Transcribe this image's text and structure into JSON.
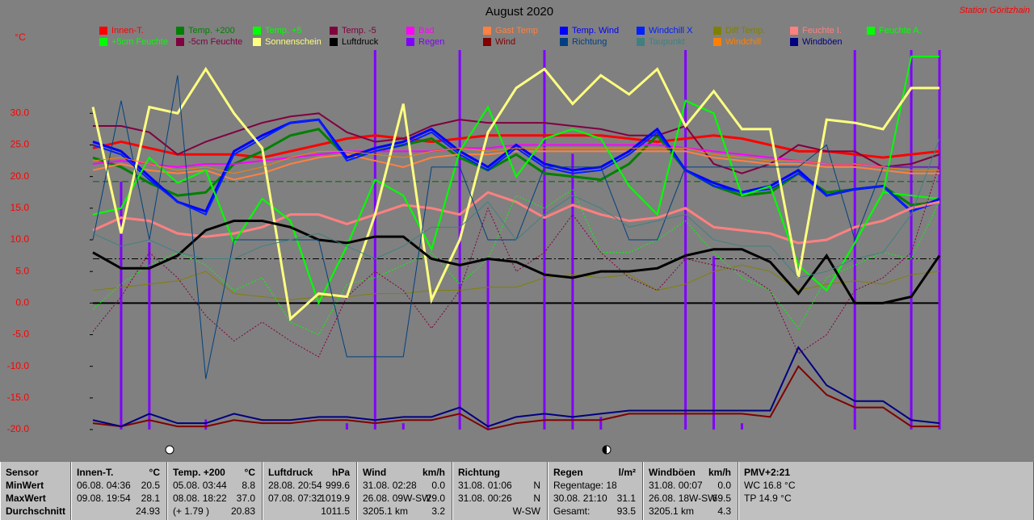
{
  "chart_data": {
    "type": "line",
    "title": "August 2020",
    "station": "Station Göritzhain",
    "y_unit": "°C",
    "ylim": [
      -20,
      40
    ],
    "y2lim": [
      0,
      30
    ],
    "yticks": [
      {
        "value": -20,
        "label": "-20.0"
      },
      {
        "value": -15,
        "label": "-15.0"
      },
      {
        "value": -10,
        "label": "-10.0"
      },
      {
        "value": -5,
        "label": "-5.0"
      },
      {
        "value": 0,
        "label": "0.0"
      },
      {
        "value": 5,
        "label": "5.0"
      },
      {
        "value": 10,
        "label": "10.0"
      },
      {
        "value": 15,
        "label": "15.0"
      },
      {
        "value": 20,
        "label": "20.0"
      },
      {
        "value": 25,
        "label": "25.0"
      },
      {
        "value": 30,
        "label": "30.0"
      }
    ],
    "reference_lines": [
      {
        "value": 19.2,
        "color": "#006400"
      },
      {
        "value": 7,
        "color": "#000000"
      }
    ],
    "series": [
      {
        "name": "Innen-T.",
        "color": "#ff0000",
        "style": "thick",
        "values": [
          24.5,
          25.5,
          24.5,
          23.5,
          23.5,
          23.5,
          23,
          24,
          25,
          26,
          26.5,
          26,
          25.5,
          26,
          26.5,
          26.5,
          26.5,
          26.5,
          26.5,
          26,
          25.5,
          26,
          26.5,
          26,
          25,
          24,
          24,
          23.5,
          23,
          23.5,
          24
        ]
      },
      {
        "name": "Temp. +200",
        "color": "#008000",
        "style": "thick",
        "values": [
          23,
          21.5,
          19,
          17,
          17.5,
          22,
          24,
          26.5,
          27.5,
          23,
          24,
          25,
          26,
          23,
          21,
          23.5,
          20.5,
          20,
          19.5,
          22,
          26.5,
          21,
          18.5,
          17,
          17.5,
          20.5,
          17.5,
          18,
          18.5,
          15.5,
          16
        ]
      },
      {
        "name": "Temp. +5",
        "color": "#00ff00",
        "style": "medium",
        "values": [
          14,
          15,
          23,
          19,
          21,
          9.5,
          16.5,
          13,
          0,
          9,
          19.5,
          17,
          8.5,
          24,
          31,
          20,
          26,
          27.5,
          26,
          18.5,
          14,
          32,
          30,
          17,
          18.5,
          6,
          2,
          9.5,
          17.5,
          17,
          16.5
        ]
      },
      {
        "name": "Temp. -5",
        "color": "#800040",
        "style": "medium",
        "values": [
          28,
          28,
          27,
          23.5,
          25.5,
          27,
          28.5,
          29.5,
          30,
          27,
          25.5,
          26,
          28,
          29,
          28.5,
          28.5,
          28.5,
          28,
          27.5,
          26.5,
          26.5,
          28,
          22,
          20.5,
          22,
          25,
          24,
          24,
          21.5,
          22,
          23.5
        ]
      },
      {
        "name": "Bad",
        "color": "#ff00ff",
        "style": "medium",
        "values": [
          22,
          22.5,
          22,
          21.5,
          22,
          22,
          22.5,
          23,
          23.5,
          24,
          24,
          24,
          24,
          24.5,
          24.5,
          25,
          25,
          25,
          25,
          25,
          25,
          24.5,
          24,
          23.5,
          23,
          22.5,
          22,
          22,
          21.5,
          21.5,
          21.5
        ]
      },
      {
        "name": "Gast Temp",
        "color": "#ff8040",
        "style": "medium",
        "values": [
          21,
          22,
          21,
          20.5,
          21,
          19.5,
          20.5,
          22,
          23,
          23.5,
          22.5,
          21.5,
          23,
          23.5,
          23.5,
          24,
          24,
          24,
          24,
          24,
          24,
          24,
          23,
          22.5,
          22,
          22,
          21.5,
          21.5,
          21,
          20.5,
          20.5
        ]
      },
      {
        "name": "Temp. Wind",
        "color": "#0000ff",
        "style": "thick",
        "values": [
          25.5,
          24,
          20,
          16,
          14.5,
          24,
          26.5,
          28.5,
          29,
          23,
          24.5,
          25.5,
          27.5,
          24,
          21.5,
          25,
          22,
          21,
          21.5,
          24,
          27.5,
          21,
          19,
          17.5,
          18.5,
          21,
          17,
          18,
          18.5,
          14.5,
          16.5
        ]
      },
      {
        "name": "Windchill X",
        "color": "#0020ff",
        "style": "medium",
        "values": [
          25,
          23.5,
          19.5,
          16,
          14,
          23.5,
          26,
          28.5,
          29,
          22.5,
          24,
          25,
          27,
          23.5,
          21,
          24.5,
          21.5,
          20.5,
          21,
          23.5,
          27,
          21,
          18.5,
          17.5,
          18,
          20.5,
          17,
          18,
          18.5,
          14.5,
          16
        ]
      },
      {
        "name": "Diff Temp.",
        "color": "#808000",
        "style": "thin",
        "values": [
          2,
          2.5,
          3,
          3.5,
          5,
          1.5,
          1,
          0.5,
          1,
          1,
          1.5,
          1.5,
          2,
          2,
          2.5,
          2.5,
          4,
          4.5,
          4,
          4.5,
          2,
          3,
          5,
          6,
          5,
          2,
          3,
          3.5,
          3,
          4.5,
          5
        ]
      },
      {
        "name": "Feuchte I.",
        "color": "#ff8080",
        "style": "thick",
        "values": [
          11.5,
          13.5,
          13,
          11,
          10.5,
          11,
          12,
          14,
          14,
          12.5,
          14,
          15.5,
          15,
          14,
          17.5,
          16,
          13.5,
          15.5,
          14,
          13,
          13.5,
          15,
          12,
          11.5,
          11,
          9.5,
          10,
          12,
          13,
          15,
          16
        ]
      },
      {
        "name": "Feuchte A.",
        "color": "#00ff00",
        "style": "medium",
        "values": [
          14,
          15,
          23,
          19,
          21,
          9.5,
          16.5,
          13,
          0,
          9,
          19.5,
          17,
          8.5,
          24,
          31,
          20,
          26,
          27.5,
          26,
          18.5,
          14,
          32,
          30,
          17,
          18.5,
          6,
          2,
          9.5,
          17.5,
          39,
          39
        ]
      },
      {
        "name": "+5cm Feuchte",
        "color": "#00ff00",
        "style": "dotted",
        "values": [
          -1,
          3,
          6,
          8,
          6,
          2,
          4,
          -3,
          -5,
          3,
          4,
          6,
          8,
          3,
          7,
          17,
          15,
          18,
          8,
          8,
          10,
          13,
          8,
          4,
          2,
          -4,
          4,
          6,
          8,
          7,
          16
        ]
      },
      {
        "name": "-5cm Feuchte",
        "color": "#800040",
        "style": "dotted",
        "values": [
          -4.5,
          1,
          8,
          4,
          -2,
          -6,
          -3,
          -6,
          -8.5,
          1,
          5,
          2,
          -4,
          2,
          15,
          5,
          8,
          14,
          8,
          4,
          2,
          7,
          6,
          5,
          2,
          -8,
          -5,
          2,
          4,
          8,
          22
        ]
      },
      {
        "name": "Sonnenschein",
        "color": "#ffff80",
        "style": "thick",
        "values": [
          31,
          11,
          31,
          30,
          37,
          30,
          24.5,
          -2.5,
          1.5,
          1,
          14,
          31.5,
          0.5,
          10,
          27,
          34,
          37,
          31.5,
          36,
          33,
          37,
          28,
          33.5,
          27.5,
          27.5,
          4,
          29,
          28.5,
          27.5,
          34,
          34
        ]
      },
      {
        "name": "Luftdruck",
        "color": "#000000",
        "style": "thick",
        "values": [
          8,
          5.5,
          5.5,
          7.5,
          11.5,
          13,
          13,
          12,
          10,
          9.5,
          10.5,
          10.5,
          7,
          6,
          7,
          6.5,
          4.5,
          4,
          5,
          5,
          5.5,
          7.5,
          8.5,
          8.5,
          6.5,
          1.5,
          7.5,
          0,
          0,
          1,
          7.5
        ]
      },
      {
        "name": "Regen",
        "color": "#8000ff",
        "style": "bars",
        "axis": "y2",
        "values": [
          0,
          19.6,
          14.8,
          0,
          0.8,
          0,
          0,
          0,
          0,
          0.5,
          30,
          0.5,
          0,
          30,
          13.5,
          0,
          30,
          21.8,
          1,
          0,
          0,
          30,
          13.7,
          0.5,
          0,
          0,
          0,
          30,
          0,
          30,
          30
        ]
      },
      {
        "name": "Wind",
        "color": "#800000",
        "style": "medium",
        "values": [
          -19,
          -19.5,
          -18.5,
          -19.5,
          -19.5,
          -18.5,
          -19,
          -19,
          -18.5,
          -18.5,
          -19,
          -18.5,
          -18.5,
          -17.5,
          -20,
          -19,
          -18.5,
          -18.5,
          -18.5,
          -17.5,
          -17.5,
          -17.5,
          -17.5,
          -17.5,
          -18,
          -10,
          -14.5,
          -16.5,
          -16.5,
          -19.5,
          -19.5
        ]
      },
      {
        "name": "Richtung",
        "color": "#004080",
        "style": "thin",
        "values": [
          10,
          32,
          10,
          36,
          -12,
          10,
          10,
          10,
          10,
          -8.5,
          -8.5,
          -8.5,
          21.5,
          21.5,
          10,
          10,
          21.5,
          21.5,
          21.5,
          10,
          10,
          21.5,
          21.5,
          21.5,
          21.5,
          21.5,
          25,
          10,
          21.5,
          21.5,
          21.5
        ]
      },
      {
        "name": "Taupunkt",
        "color": "#408080",
        "style": "thin",
        "values": [
          11,
          9,
          10,
          8,
          7,
          7,
          9,
          10,
          11,
          9,
          7,
          9,
          12,
          12,
          16,
          10,
          14,
          17,
          15,
          12,
          13,
          14,
          10,
          9,
          9,
          4,
          5,
          7,
          8,
          14,
          26
        ]
      },
      {
        "name": "Windchill",
        "color": "#ff8000",
        "style": "thin",
        "values": [
          22.5,
          23,
          22,
          21,
          21.5,
          20.5,
          21.5,
          23,
          24,
          24,
          23.5,
          23,
          24,
          24.5,
          24,
          24.5,
          24.5,
          24.5,
          24.5,
          24.5,
          24.5,
          24.5,
          23.5,
          23,
          22.5,
          22.5,
          22,
          22,
          21.5,
          21,
          21
        ]
      },
      {
        "name": "Windböen",
        "color": "#000080",
        "style": "medium",
        "values": [
          -18.5,
          -19.5,
          -17.5,
          -19,
          -19,
          -17.5,
          -18.5,
          -18.5,
          -18,
          -18,
          -18.5,
          -18,
          -18,
          -16.5,
          -19.5,
          -18,
          -17.5,
          -18,
          -17.5,
          -17,
          -17,
          -17,
          -17,
          -17,
          -17,
          -7,
          -13,
          -15.5,
          -15.5,
          -18.5,
          -19
        ]
      }
    ]
  },
  "table": {
    "columns": [
      {
        "header": "Sensor",
        "rows": [
          {
            "left": "MinWert"
          },
          {
            "left": "MaxWert"
          },
          {
            "left": "Durchschnitt"
          }
        ]
      },
      {
        "header": "Innen-T.",
        "unit": "°C",
        "rows": [
          {
            "left": "06.08.  04:36",
            "right": "20.5"
          },
          {
            "left": "09.08.  19:54",
            "right": "28.1"
          },
          {
            "right": "24.93"
          }
        ]
      },
      {
        "header": "Temp. +200",
        "unit": "°C",
        "rows": [
          {
            "left": "05.08.  03:44",
            "right": "8.8"
          },
          {
            "left": "08.08.  18:22",
            "right": "37.0"
          },
          {
            "left": "(+ 1.79 )",
            "right": "20.83"
          }
        ]
      },
      {
        "header": "Luftdruck",
        "unit": "hPa",
        "rows": [
          {
            "left": "28.08.  20:54",
            "right": "999.6"
          },
          {
            "left": "07.08.  07:32",
            "right": "1019.9"
          },
          {
            "right": "1011.5"
          }
        ]
      },
      {
        "header": "Wind",
        "unit": "km/h",
        "rows": [
          {
            "left": "31.08.  02:28",
            "right": "0.0"
          },
          {
            "left": "26.08.  09W-SW",
            "right": "29.0"
          },
          {
            "left": "3205.1 km",
            "right": "3.2"
          }
        ]
      },
      {
        "header": "Richtung",
        "rows": [
          {
            "left": "31.08.  01:06",
            "right": "N"
          },
          {
            "left": "31.08.  00:26",
            "right": "N"
          },
          {
            "right": "W-SW"
          }
        ]
      },
      {
        "header": "Regen",
        "unit": "l/m²",
        "rows": [
          {
            "left": "Regentage: 18"
          },
          {
            "left": "30.08.  21:10",
            "right": "31.1"
          },
          {
            "left": "Gesamt:",
            "right": "93.5"
          }
        ]
      },
      {
        "header": "Windböen",
        "unit": "km/h",
        "rows": [
          {
            "left": "31.08.  00:07",
            "right": "0.0"
          },
          {
            "left": "26.08.  18W-SW",
            "right": "69.5"
          },
          {
            "left": "3205.1 km",
            "right": "4.3"
          }
        ]
      },
      {
        "header": "PMV+2:21",
        "rows": [
          {
            "left": "WC 16.8 °C"
          },
          {
            "left": "TP 14.9 °C"
          }
        ]
      }
    ]
  }
}
